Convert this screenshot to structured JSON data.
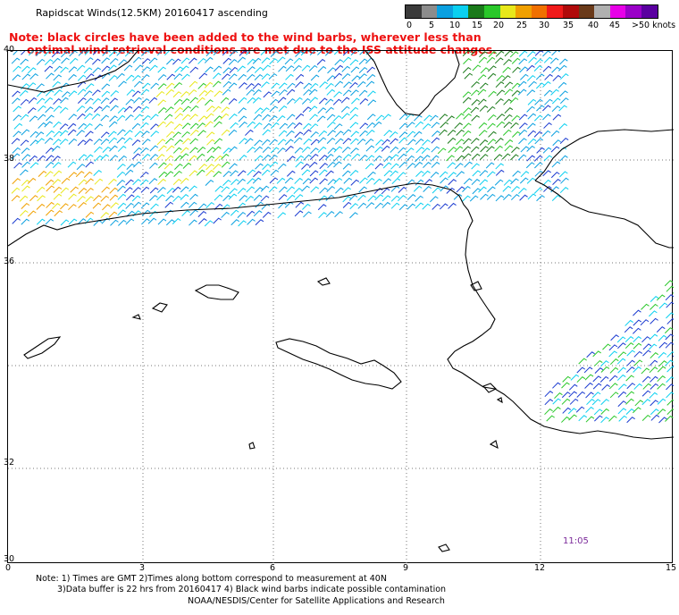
{
  "title": "Rapidscat Winds(12.5KM) 20160417 ascending",
  "note": {
    "line1": "Note: black circles have been added to the wind barbs, wherever less than",
    "line2": "optimal wind retrieval conditions are met due to the ISS attitude changes."
  },
  "legend": {
    "labels": [
      "0",
      "5",
      "10",
      "15",
      "20",
      "25",
      "30",
      "35",
      "40",
      "45",
      ">50 knots"
    ],
    "colors": [
      "#3a3a3a",
      "#8c8c8c",
      "#0aa0e0",
      "#0ad0f0",
      "#1a7a1a",
      "#2ac82a",
      "#e8e81a",
      "#f0a000",
      "#f07000",
      "#f01a1a",
      "#b00a0a",
      "#6a3a1a",
      "#b0b0b0",
      "#e800e8",
      "#9a00c8",
      "#5a00a0"
    ]
  },
  "axes": {
    "y_labels": [
      "40",
      "38",
      "36",
      "32",
      "30"
    ],
    "x_labels": [
      "0",
      "3",
      "6",
      "9",
      "12",
      "15"
    ]
  },
  "time_label": "11:05",
  "footer": {
    "line1": "Note: 1) Times are GMT 2)Times along bottom correspond to measurement at 40N",
    "line2": "3)Data buffer is 22 hrs from 20160417 4) Black wind barbs indicate possible contamination",
    "line3": "NOAA/NESDIS/Center for Satellite Applications and Research"
  }
}
